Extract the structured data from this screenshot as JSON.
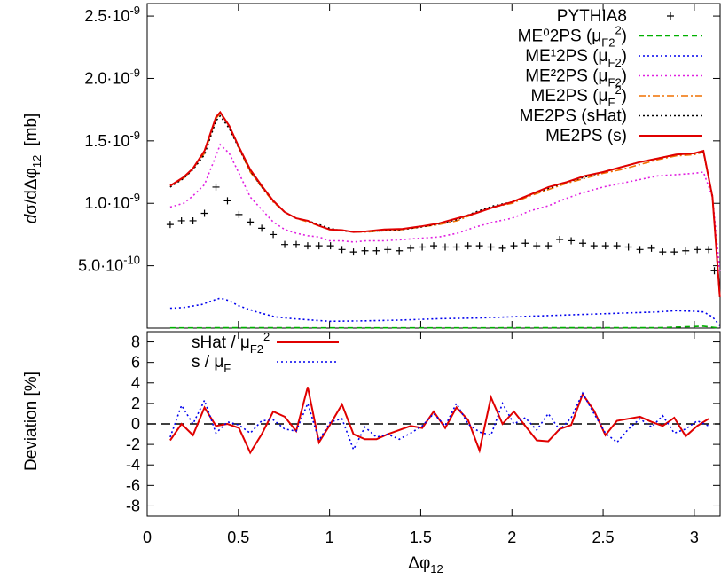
{
  "chart_data": [
    {
      "type": "line",
      "panel": "top",
      "ylabel_tex": {
        "a": "d",
        "b": "σ/d",
        "c": "Δφ",
        "c_sub": "12",
        "unit": "[mb]"
      },
      "xlim": [
        0,
        3.1416
      ],
      "ylim": [
        0,
        2.6e-09
      ],
      "ytick_labels": [
        {
          "value": 5e-10,
          "mant": "5.0·10",
          "exp": "-10"
        },
        {
          "value": 1e-09,
          "mant": "1.0·10",
          "exp": "-9"
        },
        {
          "value": 1.5e-09,
          "mant": "1.5·10",
          "exp": "-9"
        },
        {
          "value": 2e-09,
          "mant": "2.0·10",
          "exp": "-9"
        },
        {
          "value": 2.5e-09,
          "mant": "2.5·10",
          "exp": "-9"
        }
      ],
      "legend_position": "top-right",
      "series": [
        {
          "key": "pythia",
          "legend_text": "PYTHIA8",
          "color": "#000000",
          "style": "plus",
          "x": [
            0.126,
            0.188,
            0.251,
            0.314,
            0.377,
            0.44,
            0.503,
            0.565,
            0.628,
            0.691,
            0.754,
            0.817,
            0.88,
            0.942,
            1.005,
            1.068,
            1.131,
            1.194,
            1.257,
            1.319,
            1.382,
            1.445,
            1.508,
            1.571,
            1.634,
            1.696,
            1.759,
            1.822,
            1.885,
            1.948,
            2.011,
            2.073,
            2.136,
            2.199,
            2.262,
            2.325,
            2.388,
            2.45,
            2.513,
            2.576,
            2.639,
            2.702,
            2.765,
            2.827,
            2.89,
            2.953,
            3.016,
            3.079,
            3.11
          ],
          "y": [
            8.3e-10,
            8.6e-10,
            8.6e-10,
            9.2e-10,
            1.13e-09,
            1.02e-09,
            9.1e-10,
            8.5e-10,
            8e-10,
            7.5e-10,
            6.7e-10,
            6.7e-10,
            6.6e-10,
            6.6e-10,
            6.6e-10,
            6.3e-10,
            6.1e-10,
            6.2e-10,
            6.2e-10,
            6.3e-10,
            6.2e-10,
            6.4e-10,
            6.5e-10,
            6.6e-10,
            6.5e-10,
            6.5e-10,
            6.6e-10,
            6.6e-10,
            6.5e-10,
            6.4e-10,
            6.6e-10,
            6.8e-10,
            6.6e-10,
            6.6e-10,
            7.1e-10,
            7e-10,
            6.8e-10,
            6.6e-10,
            6.6e-10,
            6.6e-10,
            6.5e-10,
            6.3e-10,
            6.4e-10,
            6.1e-10,
            6.1e-10,
            6.2e-10,
            6.3e-10,
            6.3e-10,
            4.6e-10
          ]
        },
        {
          "key": "me0",
          "legend_text": "ME⁰2PS (μ",
          "legend_sub": "F2",
          "legend_close": ")",
          "legend_sup2": true,
          "color": "#00b000",
          "style": "dashed",
          "x": [
            0.126,
            0.4,
            0.8,
            1.2,
            1.6,
            2.0,
            2.4,
            2.8,
            3.05,
            3.14
          ],
          "y": [
            2e-12,
            3e-12,
            2.5e-12,
            2e-12,
            2e-12,
            2.5e-12,
            2.8e-12,
            3e-12,
            1.5e-11,
            0
          ]
        },
        {
          "key": "me1",
          "legend_text": "ME¹2PS (μ",
          "legend_sub": "F2",
          "legend_close": ")",
          "color": "#0000ee",
          "style": "dotted",
          "x": [
            0.126,
            0.2,
            0.3,
            0.377,
            0.4,
            0.45,
            0.5,
            0.6,
            0.7,
            0.8,
            0.9,
            1.0,
            1.2,
            1.4,
            1.6,
            1.8,
            2.0,
            2.2,
            2.4,
            2.6,
            2.8,
            2.9,
            3.0,
            3.05,
            3.1,
            3.14
          ],
          "y": [
            1.6e-10,
            1.65e-10,
            1.9e-10,
            2.3e-10,
            2.4e-10,
            2.2e-10,
            1.8e-10,
            1.3e-10,
            9e-11,
            7.5e-11,
            6.5e-11,
            5.5e-11,
            5.8e-11,
            6.5e-11,
            7.5e-11,
            8e-11,
            9e-11,
            1e-10,
            1.1e-10,
            1.2e-10,
            1.3e-10,
            1.4e-10,
            1.35e-10,
            1.3e-10,
            9e-11,
            2e-11
          ]
        },
        {
          "key": "me2",
          "legend_text": "ME²2PS (μ",
          "legend_sub": "F2",
          "legend_close": ")",
          "color": "#e020e0",
          "style": "dotted",
          "x": [
            0.126,
            0.2,
            0.251,
            0.314,
            0.377,
            0.4,
            0.45,
            0.5,
            0.565,
            0.628,
            0.691,
            0.754,
            0.817,
            0.88,
            0.942,
            1.0,
            1.068,
            1.131,
            1.2,
            1.3,
            1.4,
            1.5,
            1.6,
            1.7,
            1.8,
            1.9,
            2.0,
            2.1,
            2.2,
            2.3,
            2.4,
            2.5,
            2.6,
            2.7,
            2.8,
            2.9,
            3.0,
            3.05,
            3.1,
            3.14
          ],
          "y": [
            9.7e-10,
            1e-09,
            1.06e-09,
            1.15e-09,
            1.38e-09,
            1.47e-09,
            1.4e-09,
            1.25e-09,
            1.05e-09,
            9.5e-10,
            8.5e-10,
            7.9e-10,
            7.6e-10,
            7.4e-10,
            7.3e-10,
            7e-10,
            7e-10,
            6.9e-10,
            7e-10,
            7e-10,
            7.1e-10,
            7.2e-10,
            7.3e-10,
            7.6e-10,
            8.1e-10,
            8.5e-10,
            8.8e-10,
            9.4e-10,
            9.8e-10,
            1.04e-09,
            1.09e-09,
            1.13e-09,
            1.16e-09,
            1.19e-09,
            1.22e-09,
            1.23e-09,
            1.24e-09,
            1.25e-09,
            1.05e-09,
            4.5e-10
          ]
        },
        {
          "key": "me2_muF",
          "legend_text": "ME2PS (μ",
          "legend_sub": "F",
          "legend_close": ")",
          "legend_sup2": true,
          "color": "#f07000",
          "style": "dashdot",
          "x": [
            0.126,
            0.2,
            0.251,
            0.314,
            0.377,
            0.4,
            0.45,
            0.5,
            0.565,
            0.628,
            0.691,
            0.754,
            0.817,
            0.88,
            0.942,
            1.0,
            1.068,
            1.131,
            1.2,
            1.3,
            1.4,
            1.5,
            1.6,
            1.7,
            1.8,
            1.9,
            2.0,
            2.1,
            2.2,
            2.3,
            2.4,
            2.5,
            2.6,
            2.7,
            2.8,
            2.9,
            3.0,
            3.05,
            3.1,
            3.14
          ],
          "y": [
            1.14e-09,
            1.2e-09,
            1.28e-09,
            1.4e-09,
            1.68e-09,
            1.72e-09,
            1.62e-09,
            1.45e-09,
            1.25e-09,
            1.13e-09,
            1.01e-09,
            9.3e-10,
            8.8e-10,
            8.5e-10,
            8.2e-10,
            7.9e-10,
            7.85e-10,
            7.7e-10,
            7.7e-10,
            7.8e-10,
            7.9e-10,
            8.1e-10,
            8.3e-10,
            8.6e-10,
            9.2e-10,
            9.7e-10,
            1e-09,
            1.06e-09,
            1.11e-09,
            1.16e-09,
            1.2e-09,
            1.24e-09,
            1.27e-09,
            1.31e-09,
            1.35e-09,
            1.38e-09,
            1.39e-09,
            1.41e-09,
            1.05e-09,
            2.5e-10
          ]
        },
        {
          "key": "me2_shat",
          "legend_text": "ME2PS (sHat)",
          "color": "#000000",
          "style": "dotted",
          "x": [
            0.126,
            0.2,
            0.251,
            0.314,
            0.377,
            0.4,
            0.45,
            0.5,
            0.565,
            0.628,
            0.691,
            0.754,
            0.817,
            0.88,
            0.942,
            1.0,
            1.068,
            1.131,
            1.2,
            1.3,
            1.4,
            1.5,
            1.6,
            1.7,
            1.8,
            1.9,
            2.0,
            2.1,
            2.2,
            2.3,
            2.4,
            2.5,
            2.6,
            2.7,
            2.8,
            2.9,
            3.0,
            3.05,
            3.1,
            3.14
          ],
          "y": [
            1.13e-09,
            1.2e-09,
            1.27e-09,
            1.39e-09,
            1.66e-09,
            1.7e-09,
            1.6e-09,
            1.45e-09,
            1.26e-09,
            1.13e-09,
            1.02e-09,
            9.3e-10,
            8.8e-10,
            8.6e-10,
            8.3e-10,
            8e-10,
            7.8e-10,
            7.7e-10,
            7.75e-10,
            7.8e-10,
            7.9e-10,
            8.1e-10,
            8.35e-10,
            8.7e-10,
            9.3e-10,
            9.8e-10,
            1.01e-09,
            1.07e-09,
            1.12e-09,
            1.17e-09,
            1.21e-09,
            1.25e-09,
            1.29e-09,
            1.33e-09,
            1.36e-09,
            1.39e-09,
            1.4e-09,
            1.41e-09,
            1.06e-09,
            2.5e-10
          ]
        },
        {
          "key": "me2_s",
          "legend_text": "ME2PS (s)",
          "color": "#e00000",
          "style": "solid",
          "x": [
            0.126,
            0.2,
            0.251,
            0.314,
            0.377,
            0.4,
            0.45,
            0.5,
            0.565,
            0.628,
            0.691,
            0.754,
            0.817,
            0.88,
            0.942,
            1.0,
            1.068,
            1.131,
            1.2,
            1.3,
            1.4,
            1.5,
            1.6,
            1.7,
            1.8,
            1.9,
            2.0,
            2.1,
            2.2,
            2.3,
            2.4,
            2.5,
            2.6,
            2.7,
            2.8,
            2.9,
            3.0,
            3.05,
            3.1,
            3.14
          ],
          "y": [
            1.14e-09,
            1.21e-09,
            1.28e-09,
            1.42e-09,
            1.69e-09,
            1.73e-09,
            1.62e-09,
            1.46e-09,
            1.27e-09,
            1.14e-09,
            1.02e-09,
            9.3e-10,
            8.8e-10,
            8.6e-10,
            8.2e-10,
            7.9e-10,
            7.85e-10,
            7.7e-10,
            7.75e-10,
            7.9e-10,
            7.95e-10,
            8.15e-10,
            8.4e-10,
            8.8e-10,
            9.2e-10,
            9.7e-10,
            1.01e-09,
            1.07e-09,
            1.13e-09,
            1.17e-09,
            1.22e-09,
            1.25e-09,
            1.29e-09,
            1.33e-09,
            1.36e-09,
            1.39e-09,
            1.4e-09,
            1.42e-09,
            1.05e-09,
            2.5e-10
          ]
        }
      ]
    },
    {
      "type": "line",
      "panel": "bottom",
      "ylabel": "Deviation [%]",
      "xlabel": "Δφ",
      "xlabel_sub": "12",
      "xlim": [
        0,
        3.1416
      ],
      "ylim": [
        -9,
        9
      ],
      "xticks": [
        0,
        0.5,
        1,
        1.5,
        2,
        2.5,
        3
      ],
      "xtick_labels": [
        "0",
        "0.5",
        "1",
        "1.5",
        "2",
        "2.5",
        "3"
      ],
      "yticks": [
        -8,
        -6,
        -4,
        -2,
        0,
        2,
        4,
        6,
        8
      ],
      "ytick_labels": [
        "-8",
        "-6",
        "-4",
        "-2",
        "0",
        "2",
        "4",
        "6",
        "8"
      ],
      "reference_line": 0,
      "legend_position": "top-left",
      "series": [
        {
          "key": "shat_ratio",
          "legend_text": "sHat / μ",
          "legend_sub": "F2",
          "legend_sup2": true,
          "color": "#e00000",
          "style": "solid",
          "x": [
            0.126,
            0.188,
            0.251,
            0.314,
            0.377,
            0.44,
            0.503,
            0.565,
            0.628,
            0.691,
            0.754,
            0.817,
            0.88,
            0.942,
            1.005,
            1.068,
            1.131,
            1.194,
            1.257,
            1.319,
            1.382,
            1.445,
            1.508,
            1.571,
            1.634,
            1.696,
            1.759,
            1.822,
            1.885,
            1.948,
            2.011,
            2.073,
            2.136,
            2.199,
            2.262,
            2.325,
            2.388,
            2.45,
            2.513,
            2.576,
            2.639,
            2.702,
            2.765,
            2.827,
            2.89,
            2.953,
            3.016,
            3.079
          ],
          "y": [
            -1.6,
            0.0,
            -1.1,
            1.6,
            -0.2,
            0.0,
            -0.4,
            -2.8,
            -1.0,
            1.2,
            0.7,
            -0.7,
            3.6,
            -1.8,
            0.0,
            1.9,
            -1.0,
            -1.5,
            -1.5,
            -1.0,
            -0.6,
            -0.2,
            -0.4,
            1.2,
            -0.4,
            1.6,
            0.4,
            -2.6,
            2.6,
            0.0,
            1.2,
            -0.2,
            -1.6,
            -1.7,
            -0.5,
            -0.1,
            2.9,
            1.3,
            -1.1,
            0.3,
            0.5,
            0.7,
            0.2,
            -0.2,
            0.6,
            -1.2,
            -0.2,
            0.5
          ]
        },
        {
          "key": "s_ratio",
          "legend_text": "s / μ",
          "legend_sub": "F",
          "color": "#0000ee",
          "style": "dotted",
          "x": [
            0.126,
            0.188,
            0.251,
            0.314,
            0.377,
            0.44,
            0.503,
            0.565,
            0.628,
            0.691,
            0.754,
            0.817,
            0.88,
            0.942,
            1.005,
            1.068,
            1.131,
            1.194,
            1.257,
            1.319,
            1.382,
            1.445,
            1.508,
            1.571,
            1.634,
            1.696,
            1.759,
            1.822,
            1.885,
            1.948,
            2.011,
            2.073,
            2.136,
            2.199,
            2.262,
            2.325,
            2.388,
            2.45,
            2.513,
            2.576,
            2.639,
            2.702,
            2.765,
            2.827,
            2.89,
            2.953,
            3.016,
            3.079
          ],
          "y": [
            -1.3,
            1.8,
            0.0,
            2.3,
            -0.9,
            0.2,
            -0.1,
            -0.9,
            0.3,
            0.4,
            -0.5,
            -0.7,
            2.0,
            -1.6,
            0.2,
            0.5,
            -2.5,
            -0.3,
            -1.3,
            -1.0,
            -1.5,
            -0.9,
            -0.2,
            1.0,
            -0.2,
            2.0,
            0.0,
            -0.8,
            -1.1,
            2.0,
            0.0,
            0.6,
            -0.6,
            1.0,
            -0.6,
            0.6,
            3.0,
            1.0,
            -0.9,
            -1.8,
            -0.5,
            0.5,
            -0.3,
            0.8,
            -0.9,
            -0.5,
            0.3,
            -0.2
          ]
        }
      ]
    }
  ]
}
